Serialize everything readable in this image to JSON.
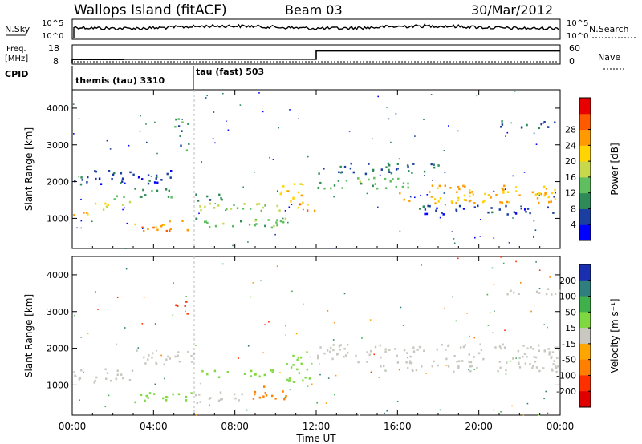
{
  "header": {
    "site": "Wallops Island (fitACF)",
    "beam": "Beam 03",
    "date": "30/Mar/2012"
  },
  "status_panels": {
    "nsky_label": "N.Sky",
    "nsearch_label": "N.Search",
    "noise_ticks": [
      "10^5",
      "10^0"
    ],
    "noise_right_ticks": [
      "10^5",
      "10^0"
    ],
    "freq_label_line1": "Freq.",
    "freq_label_line2": "[MHz]",
    "freq_ticks": [
      "18",
      "8"
    ],
    "nave_ticks": [
      "60",
      "0"
    ],
    "nave_label": "Nave",
    "cpid_label": "CPID",
    "cpid_modes": [
      {
        "label": "themis (tau) 3310",
        "start_hour": 0
      },
      {
        "label": "tau (fast) 503",
        "start_hour": 6
      }
    ],
    "nave_steps": [
      {
        "start_hour": 0,
        "end_hour": 2.5,
        "value": 13
      },
      {
        "start_hour": 2.5,
        "end_hour": 12,
        "value": 14
      },
      {
        "start_hour": 12,
        "end_hour": 24,
        "value": 42
      }
    ]
  },
  "chart_data": [
    {
      "type": "heatmap",
      "name": "power",
      "ylabel": "Slant Range [km]",
      "xlabel": "Time UT",
      "x_ticks": [
        "00:00",
        "04:00",
        "08:00",
        "12:00",
        "16:00",
        "20:00",
        "00:00"
      ],
      "y_ticks": [
        1000,
        2000,
        3000,
        4000
      ],
      "xlim_hours": [
        0,
        24
      ],
      "ylim_km": [
        180,
        4500
      ],
      "colorbar": {
        "label": "Power [dB]",
        "ticks": [
          4,
          8,
          12,
          16,
          20,
          24,
          28
        ],
        "colors": [
          "#0000ff",
          "#1a3fa0",
          "#2e8b57",
          "#5fbf5f",
          "#c8d84c",
          "#ffd400",
          "#ff9a00",
          "#ff5a00",
          "#e80000"
        ]
      },
      "bands": [
        {
          "t0": 0,
          "t1": 1,
          "r0": 1050,
          "r1": 1250,
          "v": 24
        },
        {
          "t0": 1,
          "t1": 2,
          "r0": 1150,
          "r1": 1400,
          "v": 20
        },
        {
          "t0": 2,
          "t1": 3,
          "r0": 1350,
          "r1": 1600,
          "v": 16
        },
        {
          "t0": 3,
          "t1": 5,
          "r0": 1550,
          "r1": 1850,
          "v": 12
        },
        {
          "t0": 0,
          "t1": 5,
          "r0": 1900,
          "r1": 2300,
          "v": 6
        },
        {
          "t0": 3,
          "t1": 6,
          "r0": 650,
          "r1": 950,
          "v": 26
        },
        {
          "t0": 6,
          "t1": 10.5,
          "r0": 700,
          "r1": 1000,
          "v": 14
        },
        {
          "t0": 6,
          "t1": 10.5,
          "r0": 1150,
          "r1": 1400,
          "v": 16
        },
        {
          "t0": 6,
          "t1": 8,
          "r0": 1450,
          "r1": 1650,
          "v": 10
        },
        {
          "t0": 10.2,
          "t1": 11.5,
          "r0": 1350,
          "r1": 2000,
          "v": 22
        },
        {
          "t0": 11,
          "t1": 12,
          "r0": 1200,
          "r1": 1500,
          "v": 26
        },
        {
          "t0": 12,
          "t1": 17,
          "r0": 1800,
          "r1": 2100,
          "v": 14
        },
        {
          "t0": 12,
          "t1": 18,
          "r0": 2200,
          "r1": 2500,
          "v": 8
        },
        {
          "t0": 16,
          "t1": 24,
          "r0": 1400,
          "r1": 1900,
          "v": 24
        },
        {
          "t0": 17,
          "t1": 24,
          "r0": 1100,
          "r1": 1350,
          "v": 6
        },
        {
          "t0": 21,
          "t1": 24,
          "r0": 3450,
          "r1": 3650,
          "v": 8
        },
        {
          "t0": 5,
          "t1": 5.7,
          "r0": 2800,
          "r1": 3700,
          "v": 10
        }
      ]
    },
    {
      "type": "heatmap",
      "name": "velocity",
      "ylabel": "Slant Range [km]",
      "xlabel": "Time UT",
      "x_ticks": [
        "00:00",
        "04:00",
        "08:00",
        "12:00",
        "16:00",
        "20:00",
        "00:00"
      ],
      "y_ticks": [
        1000,
        2000,
        3000,
        4000
      ],
      "xlim_hours": [
        0,
        24
      ],
      "ylim_km": [
        180,
        4500
      ],
      "colorbar": {
        "label": "Velocity [m s⁻¹]",
        "ticks": [
          200,
          100,
          50,
          15,
          -15,
          -50,
          -100,
          -200
        ],
        "colors": [
          "#1a2fb0",
          "#2f7f7f",
          "#3fb04a",
          "#7fd83f",
          "#c8c8c0",
          "#ffa500",
          "#ff8000",
          "#ff3000",
          "#e00000"
        ]
      },
      "bands": [
        {
          "t0": 0,
          "t1": 3,
          "r0": 1050,
          "r1": 1450,
          "v": 0
        },
        {
          "t0": 3,
          "t1": 6,
          "r0": 1550,
          "r1": 1950,
          "v": 0
        },
        {
          "t0": 3,
          "t1": 6,
          "r0": 500,
          "r1": 800,
          "v": 40
        },
        {
          "t0": 6,
          "t1": 8.5,
          "r0": 500,
          "r1": 800,
          "v": 0
        },
        {
          "t0": 8.5,
          "t1": 10.5,
          "r0": 600,
          "r1": 950,
          "v": -60
        },
        {
          "t0": 6,
          "t1": 10.5,
          "r0": 1200,
          "r1": 1400,
          "v": 20
        },
        {
          "t0": 10.5,
          "t1": 11.8,
          "r0": 1000,
          "r1": 1900,
          "v": 30
        },
        {
          "t0": 12,
          "t1": 24,
          "r0": 1700,
          "r1": 2100,
          "v": 0
        },
        {
          "t0": 14,
          "t1": 24,
          "r0": 1350,
          "r1": 1650,
          "v": 0
        },
        {
          "t0": 21,
          "t1": 24,
          "r0": 3450,
          "r1": 3650,
          "v": 0
        },
        {
          "t0": 5,
          "t1": 5.7,
          "r0": 2900,
          "r1": 3300,
          "v": -180
        }
      ]
    }
  ]
}
